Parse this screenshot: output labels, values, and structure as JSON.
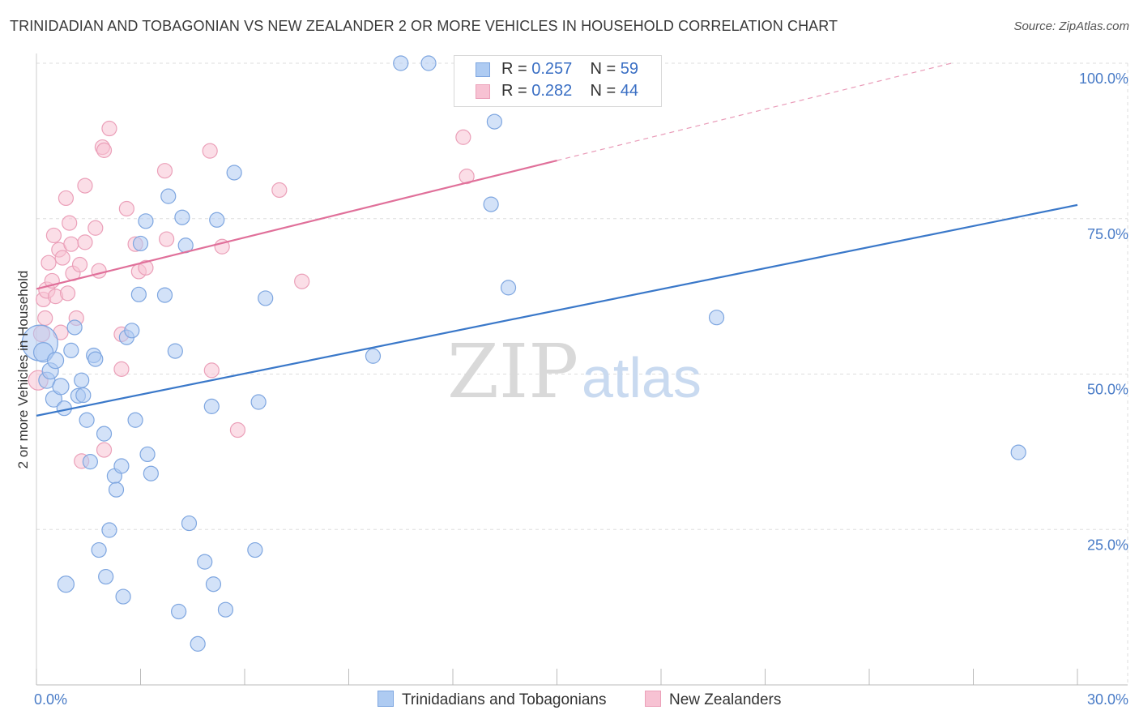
{
  "header": {
    "title": "TRINIDADIAN AND TOBAGONIAN VS NEW ZEALANDER 2 OR MORE VEHICLES IN HOUSEHOLD CORRELATION CHART",
    "source": "Source: ZipAtlas.com"
  },
  "watermark": {
    "zip": "ZIP",
    "atlas": "atlas"
  },
  "legend_top": {
    "rows": [
      {
        "r_label": "R =",
        "r_value": "0.257",
        "n_label": "N =",
        "n_value": "59"
      },
      {
        "r_label": "R =",
        "r_value": "0.282",
        "n_label": "N =",
        "n_value": "44"
      }
    ]
  },
  "colors": {
    "blue_fill": "#aecbf2",
    "blue_stroke": "#7ea6e0",
    "blue_line": "#3a78c9",
    "pink_fill": "#f7c2d3",
    "pink_stroke": "#eba0b9",
    "pink_line": "#e0709a",
    "tick_text": "#4a7cc7",
    "grid": "#dddddd"
  },
  "chart_data": {
    "type": "scatter",
    "title": "TRINIDADIAN AND TOBAGONIAN VS NEW ZEALANDER 2 OR MORE VEHICLES IN HOUSEHOLD CORRELATION CHART",
    "xlabel": "",
    "ylabel": "2 or more Vehicles in Household",
    "xlim": [
      0,
      30
    ],
    "ylim": [
      0,
      100
    ],
    "x_ticks": [
      0,
      30
    ],
    "x_tick_labels": [
      "0.0%",
      "30.0%"
    ],
    "y_ticks": [
      25,
      50,
      75,
      100
    ],
    "y_tick_labels": [
      "25.0%",
      "50.0%",
      "75.0%",
      "100.0%"
    ],
    "grid": true,
    "legend_placement": "bottom",
    "series": [
      {
        "name": "Trinidadians and Tobagonians",
        "r": 0.257,
        "n": 59,
        "trend": {
          "x": [
            0,
            30
          ],
          "y": [
            43.3,
            77.2
          ],
          "dashed_from_x": null
        },
        "points": [
          [
            0.1,
            55.0,
            22
          ],
          [
            0.2,
            53.5,
            12
          ],
          [
            0.3,
            49.0,
            10
          ],
          [
            0.4,
            50.5,
            10
          ],
          [
            0.5,
            46.0,
            10
          ],
          [
            0.55,
            52.2,
            10
          ],
          [
            0.7,
            48.0,
            10
          ],
          [
            0.8,
            44.5,
            9
          ],
          [
            0.85,
            16.2,
            10
          ],
          [
            1.0,
            53.8,
            9
          ],
          [
            1.1,
            57.5,
            9
          ],
          [
            1.2,
            46.5,
            9
          ],
          [
            1.3,
            49.0,
            9
          ],
          [
            1.35,
            46.6,
            9
          ],
          [
            1.45,
            42.6,
            9
          ],
          [
            1.55,
            35.9,
            9
          ],
          [
            1.65,
            53.0,
            9
          ],
          [
            1.7,
            52.4,
            9
          ],
          [
            1.8,
            21.7,
            9
          ],
          [
            1.95,
            40.4,
            9
          ],
          [
            2.0,
            17.4,
            9
          ],
          [
            2.1,
            24.9,
            9
          ],
          [
            2.25,
            33.6,
            9
          ],
          [
            2.3,
            31.4,
            9
          ],
          [
            2.45,
            35.2,
            9
          ],
          [
            2.5,
            14.2,
            9
          ],
          [
            2.6,
            55.9,
            9
          ],
          [
            2.75,
            57.0,
            9
          ],
          [
            2.85,
            42.6,
            9
          ],
          [
            2.95,
            62.8,
            9
          ],
          [
            3.0,
            71.0,
            9
          ],
          [
            3.15,
            74.6,
            9
          ],
          [
            3.2,
            37.1,
            9
          ],
          [
            3.3,
            34.0,
            9
          ],
          [
            3.7,
            62.7,
            9
          ],
          [
            3.8,
            78.6,
            9
          ],
          [
            4.0,
            53.7,
            9
          ],
          [
            4.1,
            11.8,
            9
          ],
          [
            4.2,
            75.2,
            9
          ],
          [
            4.3,
            70.7,
            9
          ],
          [
            4.4,
            26.0,
            9
          ],
          [
            4.65,
            6.6,
            9
          ],
          [
            4.85,
            19.8,
            9
          ],
          [
            5.05,
            44.8,
            9
          ],
          [
            5.1,
            16.2,
            9
          ],
          [
            5.2,
            74.8,
            9
          ],
          [
            5.45,
            12.1,
            9
          ],
          [
            5.7,
            82.4,
            9
          ],
          [
            6.3,
            21.7,
            9
          ],
          [
            6.4,
            45.5,
            9
          ],
          [
            6.6,
            62.2,
            9
          ],
          [
            9.7,
            52.9,
            9
          ],
          [
            10.5,
            100.0,
            9
          ],
          [
            11.3,
            100.0,
            9
          ],
          [
            13.1,
            77.3,
            9
          ],
          [
            13.2,
            90.6,
            9
          ],
          [
            13.6,
            63.9,
            9
          ],
          [
            19.6,
            59.1,
            9
          ],
          [
            28.3,
            37.4,
            9
          ]
        ]
      },
      {
        "name": "New Zealanders",
        "r": 0.282,
        "n": 44,
        "trend": {
          "x": [
            0,
            30
          ],
          "y": [
            63.7,
            105.0
          ],
          "dashed_from_x": 15.0
        },
        "points": [
          [
            0.05,
            49.0,
            12
          ],
          [
            0.15,
            56.5,
            10
          ],
          [
            0.2,
            62.0,
            9
          ],
          [
            0.25,
            59.0,
            9
          ],
          [
            0.3,
            63.5,
            10
          ],
          [
            0.35,
            67.9,
            9
          ],
          [
            0.45,
            65.0,
            9
          ],
          [
            0.5,
            72.3,
            9
          ],
          [
            0.55,
            62.5,
            9
          ],
          [
            0.65,
            70.0,
            9
          ],
          [
            0.7,
            56.7,
            9
          ],
          [
            0.75,
            68.7,
            9
          ],
          [
            0.85,
            78.3,
            9
          ],
          [
            0.9,
            63.0,
            9
          ],
          [
            0.95,
            74.3,
            9
          ],
          [
            1.0,
            70.9,
            9
          ],
          [
            1.05,
            66.2,
            9
          ],
          [
            1.15,
            59.0,
            9
          ],
          [
            1.25,
            67.6,
            9
          ],
          [
            1.3,
            36.0,
            9
          ],
          [
            1.4,
            71.2,
            9
          ],
          [
            1.4,
            80.3,
            9
          ],
          [
            1.7,
            73.5,
            9
          ],
          [
            1.8,
            66.6,
            9
          ],
          [
            1.9,
            86.5,
            9
          ],
          [
            1.95,
            37.8,
            9
          ],
          [
            1.95,
            86.0,
            9
          ],
          [
            2.1,
            89.5,
            9
          ],
          [
            2.45,
            56.4,
            9
          ],
          [
            2.45,
            50.8,
            9
          ],
          [
            2.6,
            76.6,
            9
          ],
          [
            2.85,
            70.9,
            9
          ],
          [
            2.95,
            66.5,
            9
          ],
          [
            3.15,
            67.1,
            9
          ],
          [
            3.7,
            82.7,
            9
          ],
          [
            3.75,
            71.7,
            9
          ],
          [
            5.0,
            85.9,
            9
          ],
          [
            5.05,
            50.6,
            9
          ],
          [
            5.35,
            70.5,
            9
          ],
          [
            5.8,
            41.0,
            9
          ],
          [
            7.0,
            79.6,
            9
          ],
          [
            7.65,
            64.9,
            9
          ],
          [
            12.3,
            88.1,
            9
          ],
          [
            12.4,
            81.8,
            9
          ]
        ]
      }
    ]
  }
}
